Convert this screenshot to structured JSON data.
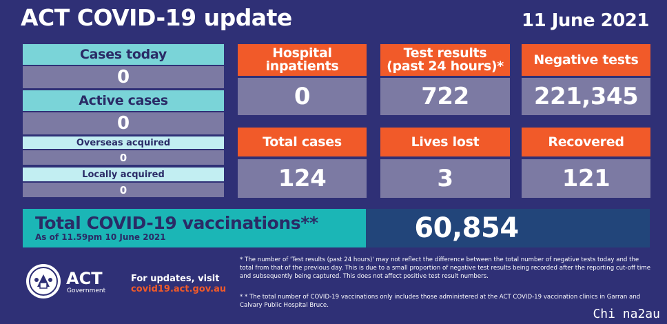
{
  "header": {
    "title": "ACT COVID-19 update",
    "date": "11 June 2021"
  },
  "left_panel": {
    "cases_today_label": "Cases today",
    "cases_today_value": "0",
    "active_cases_label": "Active cases",
    "active_cases_value": "0",
    "overseas_label": "Overseas acquired",
    "overseas_value": "0",
    "local_label": "Locally acquired",
    "local_value": "0"
  },
  "tiles": [
    {
      "label": "Hospital inpatients",
      "value": "0"
    },
    {
      "label": "Test results (past 24 hours)*",
      "value": "722"
    },
    {
      "label": "Negative tests",
      "value": "221,345"
    },
    {
      "label": "Total cases",
      "value": "124"
    },
    {
      "label": "Lives lost",
      "value": "3"
    },
    {
      "label": "Recovered",
      "value": "121"
    }
  ],
  "tile_labels_split": {
    "hospital_line1": "Hospital",
    "hospital_line2": "inpatients",
    "tests_line1": "Test results",
    "tests_line2": "(past 24 hours)*"
  },
  "vaccination": {
    "title": "Total COVID-19 vaccinations**",
    "subtitle": "As of 11.59pm 10 June 2021",
    "value": "60,854"
  },
  "footer": {
    "logo_text": "ACT",
    "logo_sub": "Government",
    "updates_label": "For updates, visit",
    "updates_url": "covid19.act.gov.au",
    "note1": "* The number of 'Test results (past 24 hours)' may not reflect the difference between the total number of negative tests today and the total from that of the previous day. This is due to a small proportion of negative test results being recorded after the reporting cut-off time and subsequently being captured. This does not affect positive test result numbers.",
    "note2": "* * The total number of COVID-19 vaccinations only includes those administered at the ACT COVID-19 vaccination clinics in Garran and Calvary Public Hospital Bruce.",
    "watermark": "Chi na2au"
  },
  "colors": {
    "background": "#2f3076",
    "orange": "#f15a29",
    "teal": "#1bb6b6",
    "tile_value_bg": "#7c7aa3"
  }
}
